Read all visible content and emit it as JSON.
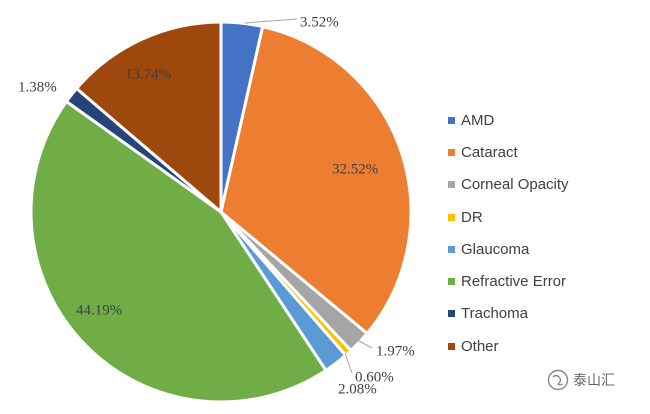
{
  "chart_data": {
    "type": "pie",
    "title": "",
    "start": "12 o'clock",
    "direction": "clockwise",
    "categories": [
      "AMD",
      "Cataract",
      "Corneal Opacity",
      "DR",
      "Glaucoma",
      "Refractive Error",
      "Trachoma",
      "Other"
    ],
    "values": [
      3.52,
      32.52,
      1.97,
      0.6,
      2.08,
      44.19,
      1.38,
      13.74
    ],
    "labels": [
      "3.52%",
      "32.52%",
      "1.97%",
      "0.60%",
      "2.08%",
      "44.19%",
      "1.38%",
      "13.74%"
    ],
    "colors": [
      "#4472C4",
      "#ED7D31",
      "#A5A5A5",
      "#FFC000",
      "#5B9BD5",
      "#70AD47",
      "#264478",
      "#9E480E"
    ],
    "legend_position": "right"
  },
  "watermark": {
    "text": "泰山汇"
  }
}
